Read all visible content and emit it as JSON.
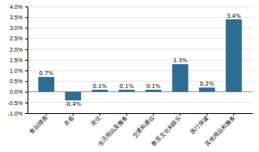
{
  "chart_data": {
    "type": "bar",
    "categories": [
      "食品烟酒",
      "衣着",
      "居住",
      "生活用品及服务",
      "交通和通信",
      "教育文化和娱乐",
      "医疗保健",
      "其他用品和服务"
    ],
    "values": [
      0.7,
      -0.4,
      0.1,
      0.1,
      0.1,
      1.3,
      0.2,
      3.4
    ],
    "value_labels": [
      "0.7%",
      "-0.4%",
      "0.1%",
      "0.1%",
      "0.1%",
      "1.3%",
      "0.2%",
      "3.4%"
    ],
    "data_labels": true,
    "color": "#2e6e93",
    "ylim": [
      -1.0,
      4.0
    ],
    "yticks": [
      {
        "value": -1.0,
        "label": "-1.0%"
      },
      {
        "value": -0.5,
        "label": "-0.5%"
      },
      {
        "value": 0.0,
        "label": "0.0%"
      },
      {
        "value": 0.5,
        "label": "0.5%"
      },
      {
        "value": 1.0,
        "label": "1.0%"
      },
      {
        "value": 1.5,
        "label": "1.5%"
      },
      {
        "value": 2.0,
        "label": "2.0%"
      },
      {
        "value": 2.5,
        "label": "2.5%"
      },
      {
        "value": 3.0,
        "label": "3.0%"
      },
      {
        "value": 3.5,
        "label": "3.5%"
      },
      {
        "value": 4.0,
        "label": "4.0%"
      }
    ],
    "grid": true
  }
}
